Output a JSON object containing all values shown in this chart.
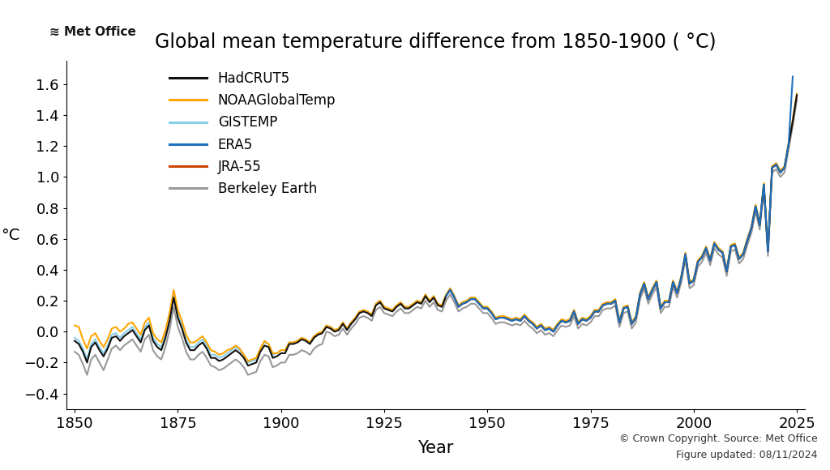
{
  "title": "Global mean temperature difference from 1850-1900 ( °C)",
  "ylabel": "°C",
  "xlabel": "Year",
  "footer_line1": "© Crown Copyright. Source: Met Office",
  "footer_line2": "Figure updated: 08/11/2024",
  "series": {
    "HadCRUT5": {
      "color": "#111111",
      "linewidth": 1.5,
      "zorder": 6
    },
    "NOAAGlobalTemp": {
      "color": "#FFA500",
      "linewidth": 1.5,
      "zorder": 5
    },
    "GISTEMP": {
      "color": "#87CEEB",
      "linewidth": 1.5,
      "zorder": 4
    },
    "ERA5": {
      "color": "#1E6FBF",
      "linewidth": 1.5,
      "zorder": 7
    },
    "JRA-55": {
      "color": "#CC4400",
      "linewidth": 1.5,
      "zorder": 3
    },
    "Berkeley Earth": {
      "color": "#999999",
      "linewidth": 1.5,
      "zorder": 2
    }
  },
  "ylim": [
    -0.5,
    1.75
  ],
  "xlim": [
    1848,
    2027
  ],
  "yticks": [
    -0.4,
    -0.2,
    0.0,
    0.2,
    0.4,
    0.6,
    0.8,
    1.0,
    1.2,
    1.4,
    1.6
  ],
  "xticks": [
    1850,
    1875,
    1900,
    1925,
    1950,
    1975,
    2000,
    2025
  ],
  "background_color": "#ffffff"
}
